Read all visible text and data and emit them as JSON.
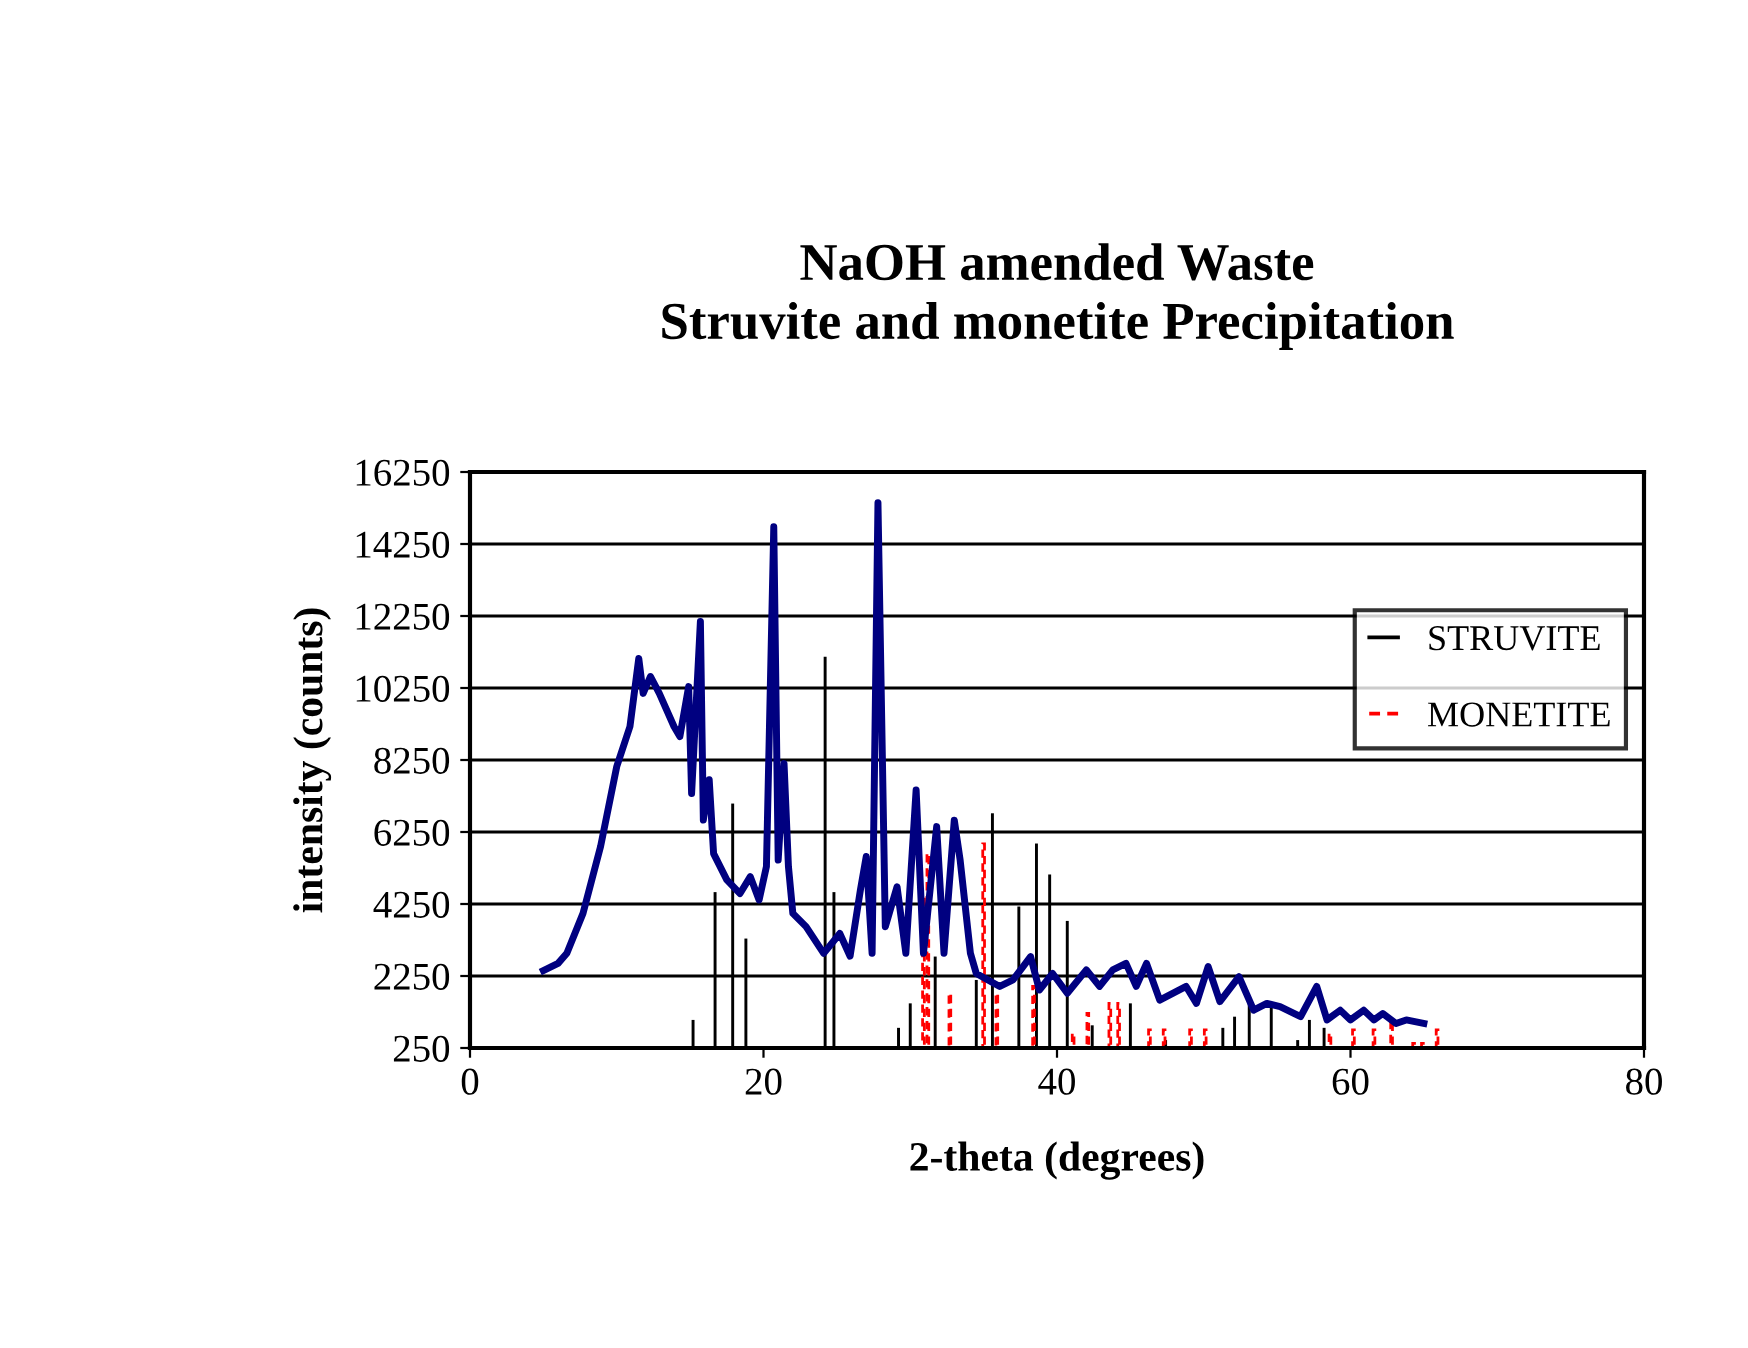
{
  "chart_data": {
    "type": "bar",
    "title": "NaOH amended Waste\nStruvite and monetite Precipitation",
    "xlabel": "2-theta (degrees)",
    "ylabel": "intensity (counts)",
    "xlim": [
      0,
      80
    ],
    "xticks": [
      0,
      20,
      40,
      60,
      80
    ],
    "ylim": [
      250,
      16250
    ],
    "yticks": [
      250,
      2250,
      4250,
      6250,
      8250,
      10250,
      12250,
      14250,
      16250
    ],
    "grid": "y",
    "legend": "right",
    "series": [
      {
        "type": "line",
        "color": "#000080",
        "line_style": "solid",
        "x": [
          5.0,
          6.0,
          6.6,
          7.7,
          8.9,
          10.0,
          10.9,
          11.5,
          11.8,
          12.3,
          12.9,
          13.9,
          14.3,
          14.9,
          15.1,
          15.7,
          15.9,
          16.3,
          16.6,
          17.5,
          18.4,
          19.1,
          19.7,
          20.2,
          20.7,
          21.0,
          21.4,
          21.7,
          22.0,
          22.9,
          24.1,
          25.2,
          25.9,
          26.6,
          27.0,
          27.4,
          27.8,
          28.3,
          29.1,
          29.7,
          30.4,
          30.9,
          31.8,
          32.3,
          33.0,
          33.4,
          34.1,
          34.5,
          36.1,
          37.0,
          38.2,
          38.8,
          39.7,
          40.7,
          42.0,
          42.9,
          43.8,
          44.7,
          45.4,
          46.1,
          47.0,
          48.8,
          49.5,
          50.3,
          51.1,
          52.4,
          53.4,
          54.3,
          55.2,
          56.6,
          57.7,
          58.4,
          59.3,
          60.0,
          60.9,
          61.6,
          62.2,
          63.1,
          63.8,
          65.0
        ],
        "values": [
          2400,
          2600,
          2880,
          3990,
          5850,
          8070,
          9180,
          11070,
          10100,
          10570,
          10100,
          9180,
          8900,
          10290,
          7320,
          12100,
          6580,
          7700,
          5650,
          4920,
          4540,
          5010,
          4360,
          5290,
          14730,
          5470,
          8150,
          5290,
          3990,
          3620,
          2880,
          3430,
          2800,
          4630,
          5570,
          2880,
          15400,
          3620,
          4730,
          2880,
          7420,
          2880,
          6400,
          2880,
          6580,
          5470,
          2880,
          2320,
          1960,
          2140,
          2790,
          1860,
          2320,
          1770,
          2420,
          1960,
          2420,
          2600,
          1960,
          2600,
          1580,
          1960,
          1490,
          2510,
          1540,
          2230,
          1300,
          1490,
          1400,
          1120,
          1960,
          1030,
          1300,
          1030,
          1300,
          1030,
          1210,
          930,
          1030,
          930
        ]
      },
      {
        "name": "STRUVITE",
        "color": "#000000",
        "line_style": "solid",
        "x": [
          15.2,
          16.7,
          17.9,
          18.8,
          24.2,
          24.8,
          29.2,
          30.0,
          31.7,
          34.5,
          35.6,
          37.4,
          38.6,
          39.5,
          40.7,
          42.4,
          45.0,
          47.4,
          51.3,
          52.1,
          53.1,
          54.6,
          56.4,
          57.2,
          58.2
        ],
        "values": [
          1030,
          4580,
          7040,
          3290,
          11120,
          4580,
          810,
          1490,
          2790,
          2140,
          6770,
          4180,
          5930,
          5070,
          3780,
          880,
          1490,
          470,
          810,
          1120,
          1490,
          1440,
          470,
          1030,
          810
        ]
      },
      {
        "name": "MONETITE",
        "color": "#ff0000",
        "line_style": "dashed",
        "x": [
          30.9,
          31.2,
          32.7,
          35.0,
          35.9,
          38.4,
          41.1,
          42.1,
          43.6,
          44.2,
          46.3,
          47.3,
          49.1,
          50.1,
          58.6,
          60.2,
          61.6,
          62.8,
          64.3,
          64.9,
          65.9
        ],
        "values": [
          4540,
          5660,
          1770,
          5920,
          1770,
          1960,
          660,
          1210,
          1490,
          1490,
          750,
          750,
          750,
          750,
          660,
          750,
          750,
          1030,
          380,
          380,
          750
        ]
      }
    ]
  }
}
